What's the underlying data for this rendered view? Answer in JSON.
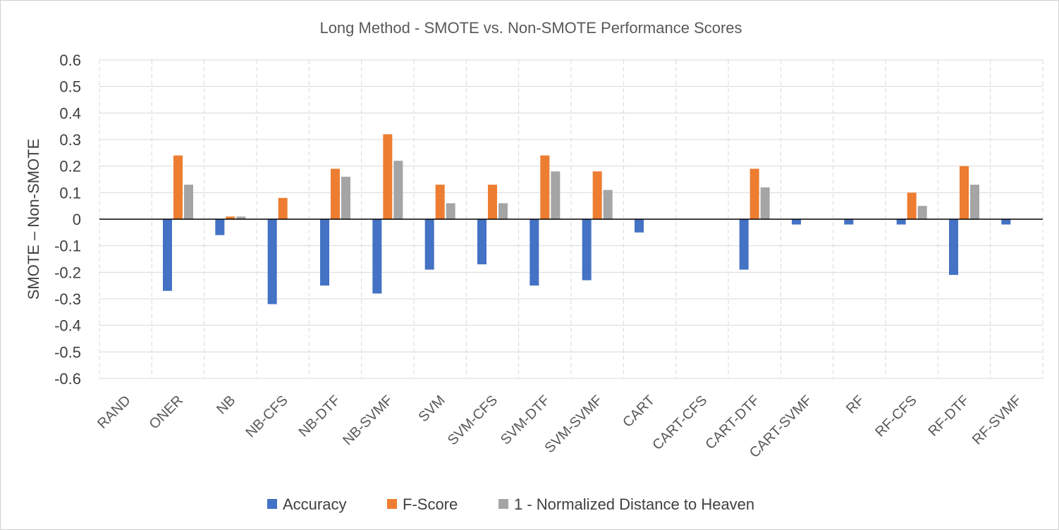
{
  "chart_data": {
    "type": "bar",
    "title": "Long Method - SMOTE vs. Non-SMOTE Performance Scores",
    "xlabel": "",
    "ylabel": "SMOTE – Non-SMOTE",
    "ylim": [
      -0.6,
      0.6
    ],
    "yticks": [
      "0.6",
      "0.5",
      "0.4",
      "0.3",
      "0.2",
      "0.1",
      "0",
      "-0.1",
      "-0.2",
      "-0.3",
      "-0.4",
      "-0.5",
      "-0.6"
    ],
    "categories": [
      "RAND",
      "ONER",
      "NB",
      "NB-CFS",
      "NB-DTF",
      "NB-SVMF",
      "SVM",
      "SVM-CFS",
      "SVM-DTF",
      "SVM-SVMF",
      "CART",
      "CART-CFS",
      "CART-DTF",
      "CART-SVMF",
      "RF",
      "RF-CFS",
      "RF-DTF",
      "RF-SVMF"
    ],
    "series": [
      {
        "name": "Accuracy",
        "color": "#4472C4",
        "values": [
          0,
          -0.27,
          -0.06,
          -0.32,
          -0.25,
          -0.28,
          -0.19,
          -0.17,
          -0.25,
          -0.23,
          -0.05,
          0,
          -0.19,
          -0.02,
          -0.02,
          -0.02,
          -0.21,
          -0.02
        ]
      },
      {
        "name": "F-Score",
        "color": "#ED7D31",
        "values": [
          0,
          0.24,
          0.01,
          0.08,
          0.19,
          0.32,
          0.13,
          0.13,
          0.24,
          0.18,
          0,
          0,
          0.19,
          0,
          0,
          0.1,
          0.2,
          0
        ]
      },
      {
        "name": "1 - Normalized Distance to Heaven",
        "color": "#A5A5A5",
        "values": [
          0,
          0.13,
          0.01,
          0,
          0.16,
          0.22,
          0.06,
          0.06,
          0.18,
          0.11,
          0,
          0,
          0.12,
          0,
          0,
          0.05,
          0.13,
          0
        ]
      }
    ],
    "grid": true,
    "legend_position": "bottom"
  }
}
